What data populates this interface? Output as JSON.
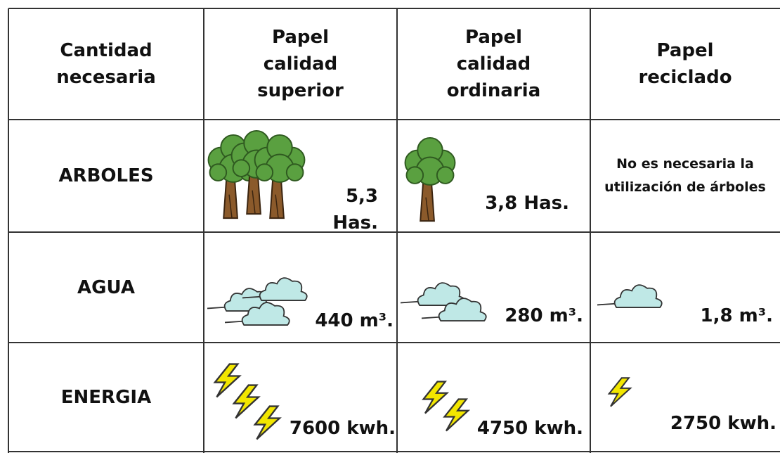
{
  "table": {
    "header": [
      "Cantidad necesaria",
      "Papel calidad superior",
      "Papel calidad ordinaria",
      "Papel reciclado"
    ],
    "rows": [
      [
        "ARBOLES",
        "5,3 Has.",
        "3,8 Has.",
        "No es necesaria la utilización de árboles"
      ],
      [
        "AGUA",
        "440 m³.",
        "280 m³.",
        "1,8 m³."
      ],
      [
        "ENERGIA",
        "7600 kwh.",
        "4750 kwh.",
        "2750 kwh."
      ]
    ]
  }
}
